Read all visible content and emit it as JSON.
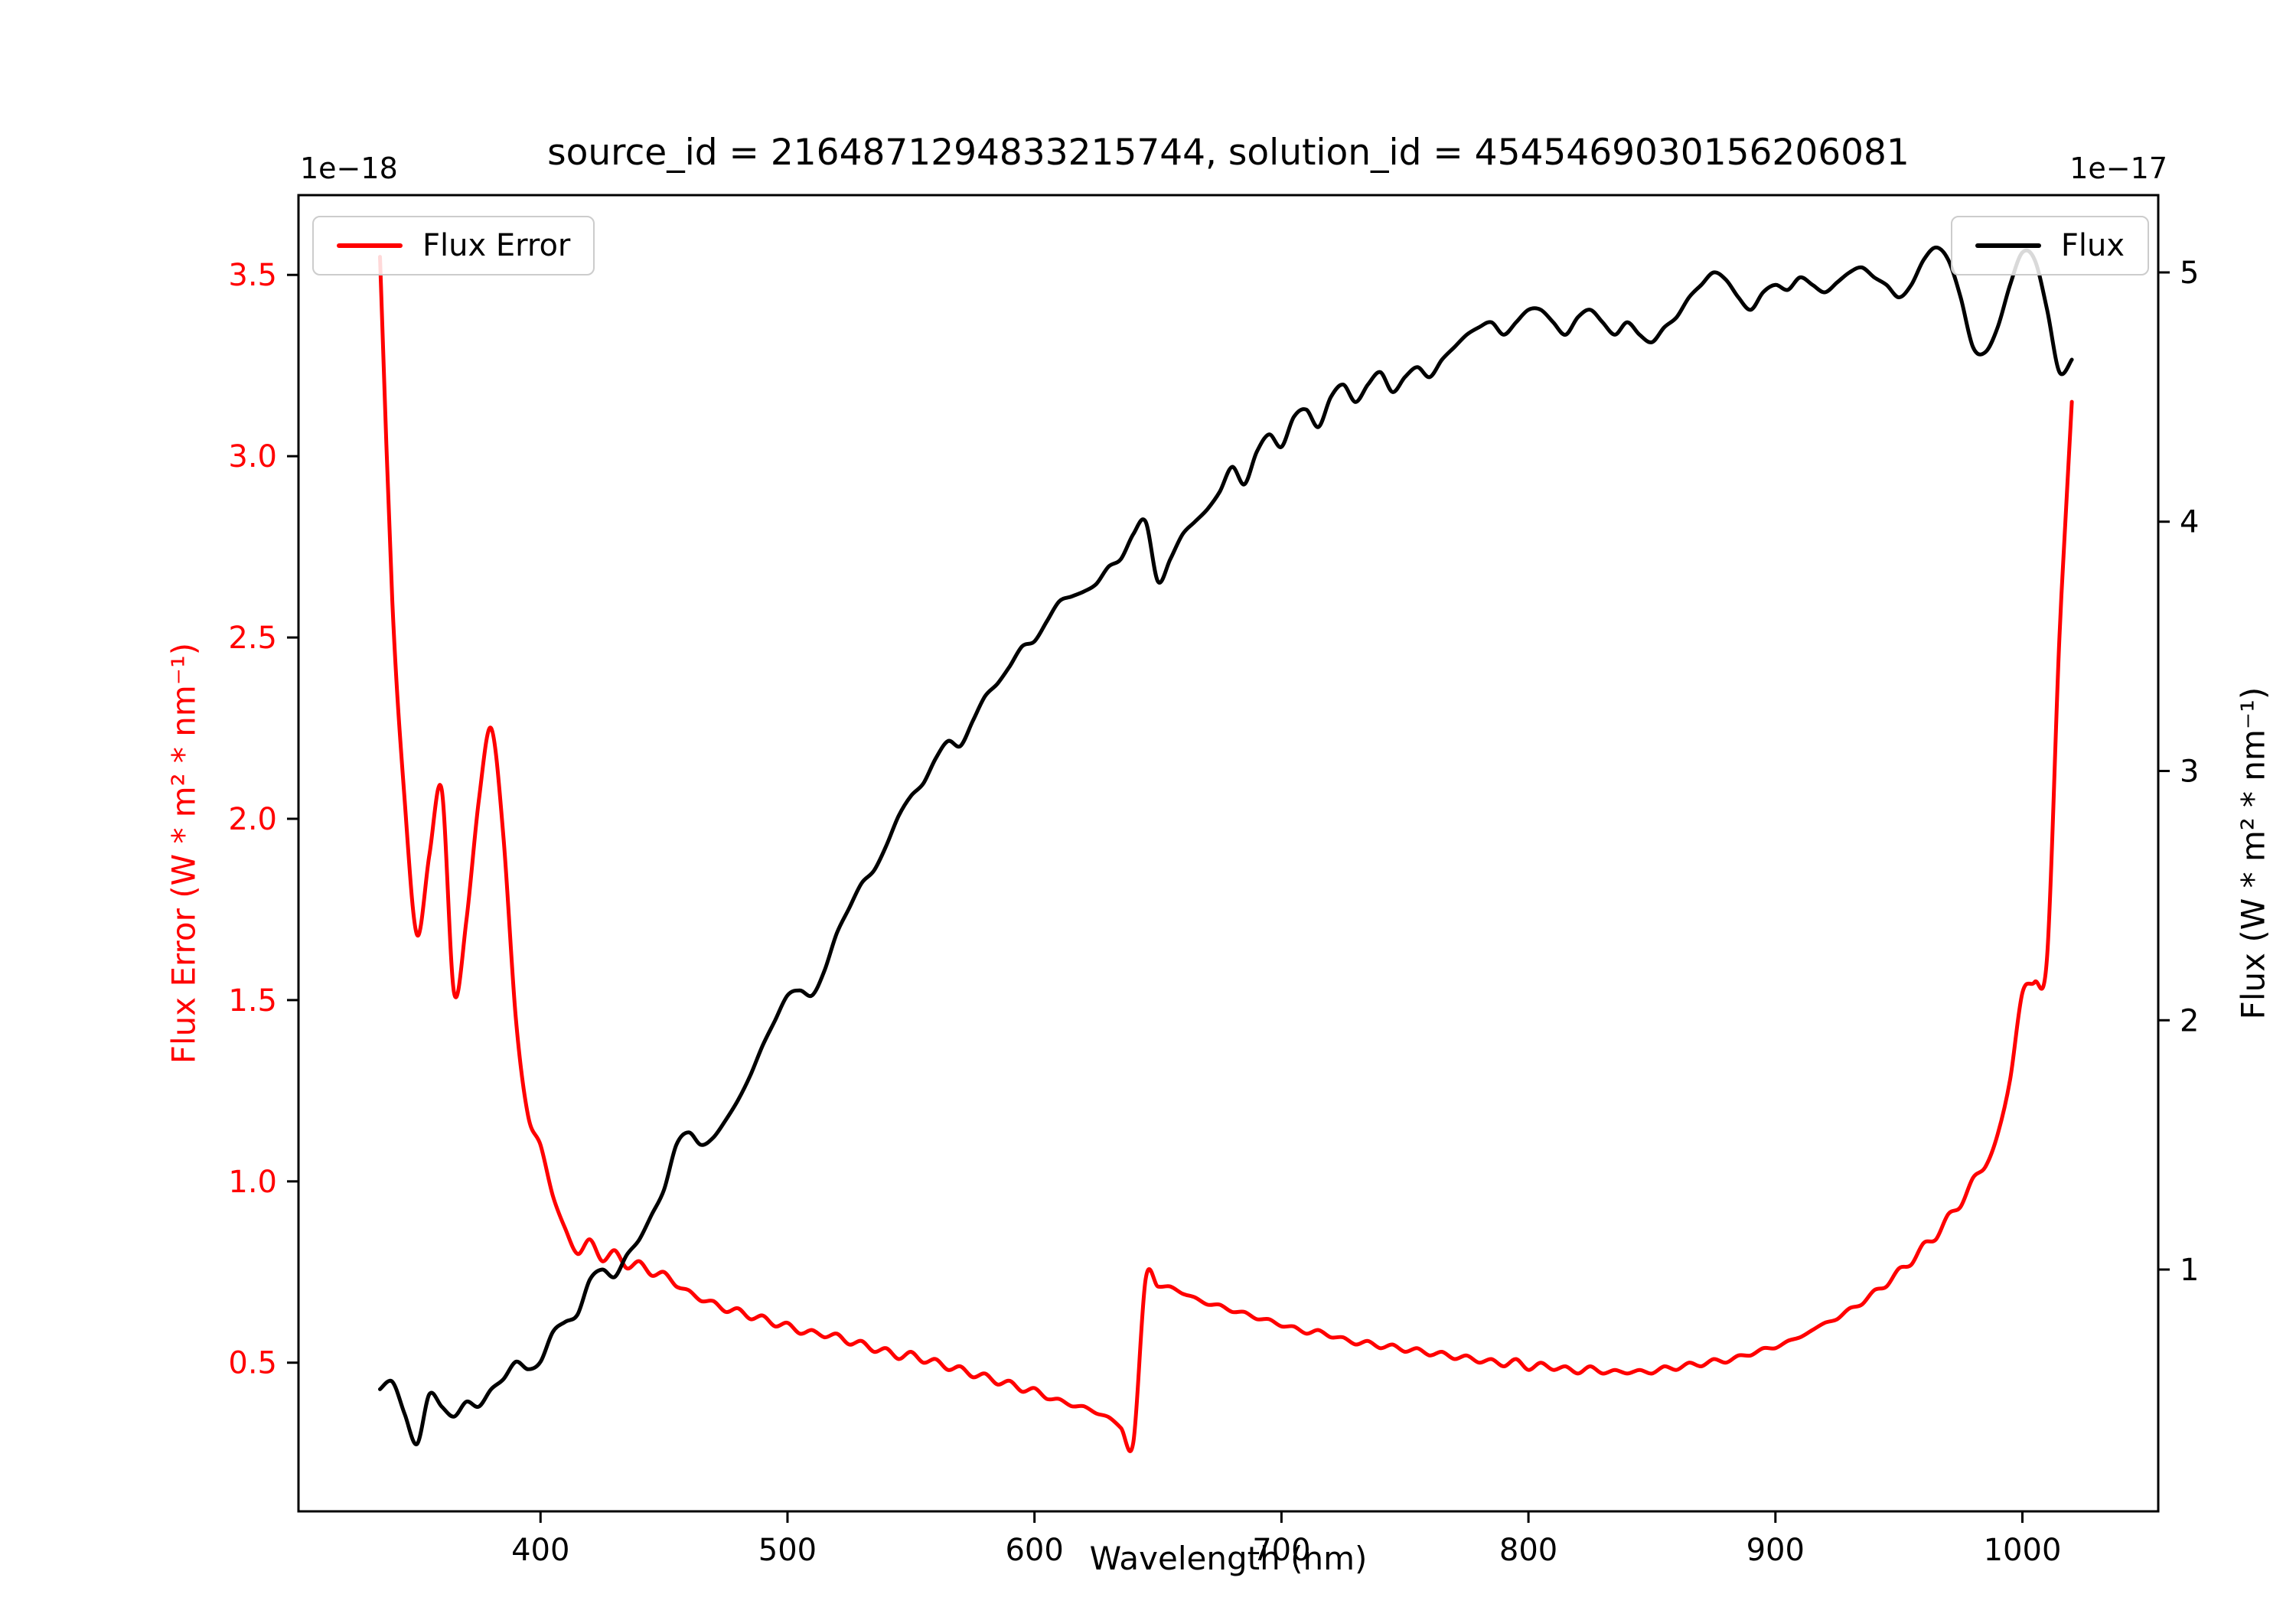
{
  "chart_data": {
    "type": "line",
    "title": "source_id = 2164871294833215744, solution_id = 4545469030156206081",
    "xlabel": "Wavelength (nm)",
    "ylabel_left": "Flux Error (W * m² * nm⁻¹)",
    "ylabel_right": "Flux (W * m² * nm⁻¹)",
    "left_offset_text": "1e−18",
    "right_offset_text": "1e−17",
    "left_axis_color": "#ff0000",
    "right_axis_color": "#000000",
    "grid": false,
    "legend_left_position": "upper left",
    "legend_right_position": "upper right",
    "xlim": [
      302,
      1055
    ],
    "ylim_left": [
      0.09,
      3.72
    ],
    "ylim_right": [
      0.03,
      5.31
    ],
    "xticks": [
      400,
      500,
      600,
      700,
      800,
      900,
      1000
    ],
    "xtick_labels": [
      "400",
      "500",
      "600",
      "700",
      "800",
      "900",
      "1000"
    ],
    "yticks_left": [
      0.5,
      1.0,
      1.5,
      2.0,
      2.5,
      3.0,
      3.5
    ],
    "ytick_labels_left": [
      "0.5",
      "1.0",
      "1.5",
      "2.0",
      "2.5",
      "3.0",
      "3.5"
    ],
    "yticks_right": [
      1,
      2,
      3,
      4,
      5
    ],
    "ytick_labels_right": [
      "1",
      "2",
      "3",
      "4",
      "5"
    ],
    "x": [
      335,
      340,
      345,
      350,
      355,
      360,
      365,
      370,
      375,
      380,
      385,
      390,
      395,
      400,
      405,
      410,
      415,
      420,
      425,
      430,
      435,
      440,
      445,
      450,
      455,
      460,
      465,
      470,
      475,
      480,
      485,
      490,
      495,
      500,
      505,
      510,
      515,
      520,
      525,
      530,
      535,
      540,
      545,
      550,
      555,
      560,
      565,
      570,
      575,
      580,
      585,
      590,
      595,
      600,
      605,
      610,
      615,
      620,
      625,
      630,
      635,
      640,
      645,
      650,
      655,
      660,
      665,
      670,
      675,
      680,
      685,
      690,
      695,
      700,
      705,
      710,
      715,
      720,
      725,
      730,
      735,
      740,
      745,
      750,
      755,
      760,
      765,
      770,
      775,
      780,
      785,
      790,
      795,
      800,
      805,
      810,
      815,
      820,
      825,
      830,
      835,
      840,
      845,
      850,
      855,
      860,
      865,
      870,
      875,
      880,
      885,
      890,
      895,
      900,
      905,
      910,
      915,
      920,
      925,
      930,
      935,
      940,
      945,
      950,
      955,
      960,
      965,
      970,
      975,
      980,
      985,
      990,
      995,
      1000,
      1005,
      1010,
      1015,
      1020
    ],
    "series": [
      {
        "name": "Flux Error",
        "axis": "left",
        "unit_scale": "1e-18",
        "color": "#ff0000",
        "values": [
          3.55,
          2.6,
          2.05,
          1.68,
          1.9,
          2.08,
          1.52,
          1.72,
          2.05,
          2.25,
          1.95,
          1.45,
          1.18,
          1.1,
          0.96,
          0.87,
          0.8,
          0.84,
          0.78,
          0.81,
          0.76,
          0.78,
          0.74,
          0.75,
          0.71,
          0.7,
          0.67,
          0.67,
          0.64,
          0.65,
          0.62,
          0.63,
          0.6,
          0.61,
          0.58,
          0.59,
          0.57,
          0.58,
          0.55,
          0.56,
          0.53,
          0.54,
          0.51,
          0.53,
          0.5,
          0.51,
          0.48,
          0.49,
          0.46,
          0.47,
          0.44,
          0.45,
          0.42,
          0.43,
          0.4,
          0.4,
          0.38,
          0.38,
          0.36,
          0.35,
          0.32,
          0.28,
          0.73,
          0.71,
          0.71,
          0.69,
          0.68,
          0.66,
          0.66,
          0.64,
          0.64,
          0.62,
          0.62,
          0.6,
          0.6,
          0.58,
          0.59,
          0.57,
          0.57,
          0.55,
          0.56,
          0.54,
          0.55,
          0.53,
          0.54,
          0.52,
          0.53,
          0.51,
          0.52,
          0.5,
          0.51,
          0.49,
          0.51,
          0.48,
          0.5,
          0.48,
          0.49,
          0.47,
          0.49,
          0.47,
          0.48,
          0.47,
          0.48,
          0.47,
          0.49,
          0.48,
          0.5,
          0.49,
          0.51,
          0.5,
          0.52,
          0.52,
          0.54,
          0.54,
          0.56,
          0.57,
          0.59,
          0.61,
          0.62,
          0.65,
          0.66,
          0.7,
          0.71,
          0.76,
          0.77,
          0.83,
          0.84,
          0.91,
          0.93,
          1.01,
          1.04,
          1.13,
          1.28,
          1.52,
          1.55,
          1.62,
          2.5,
          3.15
        ]
      },
      {
        "name": "Flux",
        "axis": "right",
        "unit_scale": "1e-17",
        "color": "#000000",
        "values": [
          0.52,
          0.55,
          0.42,
          0.3,
          0.5,
          0.45,
          0.41,
          0.47,
          0.45,
          0.52,
          0.56,
          0.63,
          0.6,
          0.63,
          0.75,
          0.79,
          0.82,
          0.96,
          1.0,
          0.97,
          1.06,
          1.12,
          1.22,
          1.32,
          1.5,
          1.55,
          1.5,
          1.53,
          1.6,
          1.68,
          1.78,
          1.9,
          2.0,
          2.1,
          2.12,
          2.1,
          2.2,
          2.35,
          2.45,
          2.55,
          2.6,
          2.7,
          2.82,
          2.9,
          2.95,
          3.05,
          3.12,
          3.1,
          3.2,
          3.3,
          3.35,
          3.42,
          3.5,
          3.52,
          3.6,
          3.68,
          3.7,
          3.72,
          3.75,
          3.82,
          3.85,
          3.95,
          4.0,
          3.76,
          3.85,
          3.95,
          4.0,
          4.05,
          4.12,
          4.22,
          4.15,
          4.28,
          4.35,
          4.3,
          4.42,
          4.45,
          4.38,
          4.5,
          4.55,
          4.48,
          4.55,
          4.6,
          4.52,
          4.58,
          4.62,
          4.58,
          4.65,
          4.7,
          4.75,
          4.78,
          4.8,
          4.75,
          4.8,
          4.85,
          4.85,
          4.8,
          4.75,
          4.82,
          4.85,
          4.8,
          4.75,
          4.8,
          4.75,
          4.72,
          4.78,
          4.82,
          4.9,
          4.95,
          5.0,
          4.97,
          4.9,
          4.85,
          4.92,
          4.95,
          4.93,
          4.98,
          4.95,
          4.92,
          4.96,
          5.0,
          5.02,
          4.98,
          4.95,
          4.9,
          4.95,
          5.05,
          5.1,
          5.05,
          4.9,
          4.7,
          4.68,
          4.78,
          4.95,
          5.08,
          5.05,
          4.85,
          4.6,
          4.65
        ]
      }
    ]
  }
}
